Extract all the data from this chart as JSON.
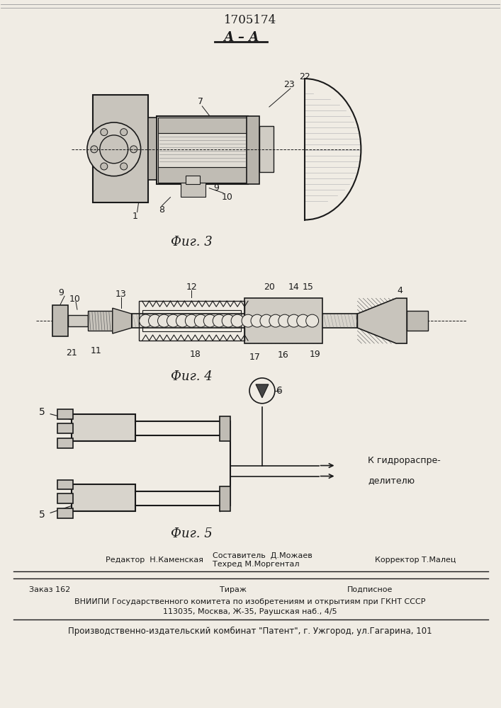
{
  "title": "1705174",
  "fig3_label": "Фиг. 3",
  "fig4_label": "Фиг. 4",
  "fig5_label": "Фиг. 5",
  "section_label": "А – А",
  "bg_color": "#f0ece4",
  "line_color": "#1a1a1a",
  "footer_line1_left": "Редактор  Н.Каменская",
  "footer_line1_mid1": "Составитель  Д.Можаев",
  "footer_line1_mid2": "Техред М.Моргентал",
  "footer_line1_right": "Корректор Т.Малец",
  "footer_line2_left": "Заказ 162",
  "footer_line2_mid": "Тираж",
  "footer_line2_right": "Подписное",
  "footer_line3": "ВНИИПИ Государственного комитета по изобретениям и открытиям при ГКНТ СССР",
  "footer_line4": "113035, Москва, Ж-35, Раушская наб., 4/5",
  "footer_line5": "Производственно-издательский комбинат \"Патент\", г. Ужгород, ул.Гагарина, 101"
}
